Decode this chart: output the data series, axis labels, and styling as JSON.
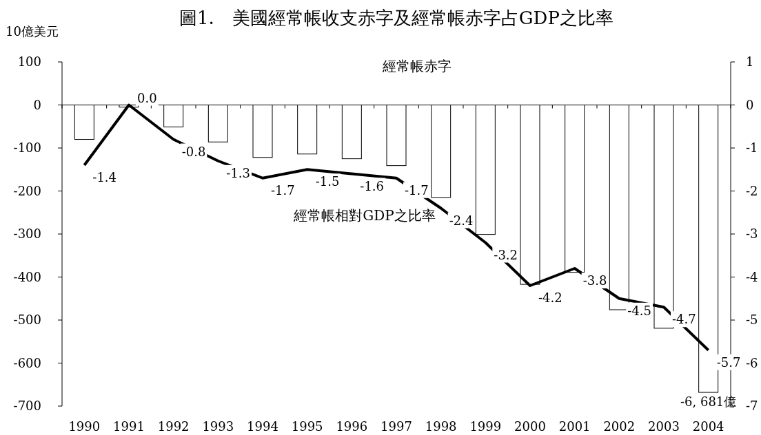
{
  "chart_data": {
    "type": "bar",
    "title": "圖1.　美國經常帳收支赤字及經常帳赤字占GDP之比率",
    "ylabel": "10億美元",
    "categories": [
      "1990",
      "1991",
      "1992",
      "1993",
      "1994",
      "1995",
      "1996",
      "1997",
      "1998",
      "1999",
      "2000",
      "2001",
      "2002",
      "2003",
      "2004"
    ],
    "ylim": [
      -700,
      100
    ],
    "yticks": [
      -700,
      -600,
      -500,
      -400,
      -300,
      -200,
      -100,
      0,
      100
    ],
    "y2lim": [
      -7,
      1
    ],
    "y2ticks": [
      -7,
      -6,
      -5,
      -4,
      -3,
      -2,
      -1,
      0,
      1
    ],
    "legend": false,
    "series": [
      {
        "name": "經常帳赤字",
        "color": "#ffffff",
        "values": [
          -80,
          -5,
          -51,
          -86,
          -122,
          -114,
          -125,
          -141,
          -215,
          -301,
          -417,
          -389,
          -476,
          -519,
          -668.1
        ]
      },
      {
        "name": "經常帳相對GDP之比率",
        "type": "line",
        "axis": "y2",
        "color": "#000000",
        "values": [
          -1.4,
          0.0,
          -0.8,
          -1.3,
          -1.7,
          -1.5,
          -1.6,
          -1.7,
          -2.4,
          -3.2,
          -4.2,
          -3.8,
          -4.5,
          -4.7,
          -5.7
        ],
        "value_labels": [
          "-1.4",
          "0.0",
          "-0.8",
          "-1.3",
          "-1.7",
          "-1.5",
          "-1.6",
          "-1.7",
          "-2.4",
          "-3.2",
          "-4.2",
          "-3.8",
          "-4.5",
          "-4.7",
          "-5.7"
        ]
      }
    ],
    "annotations": [
      {
        "text": "-6, 681億",
        "x": "2004",
        "y": -668.1
      }
    ]
  }
}
